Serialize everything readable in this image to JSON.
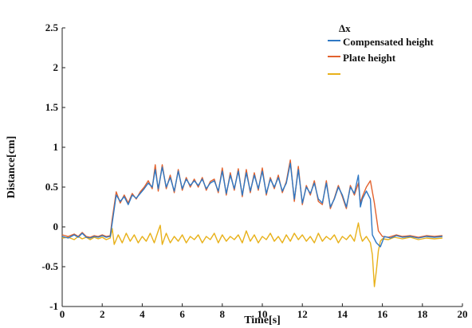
{
  "chart_data": {
    "type": "line",
    "xlabel": "Time[s]",
    "ylabel": "Distance[cm]",
    "xlim": [
      0,
      20
    ],
    "ylim": [
      -1,
      2.5
    ],
    "x_ticks": [
      "0",
      "2",
      "4",
      "6",
      "8",
      "10",
      "12",
      "14",
      "16",
      "18",
      "20"
    ],
    "y_ticks": [
      "2.5",
      "2",
      "1.5",
      "1",
      "0.5",
      "0",
      "-0.5",
      "-1"
    ],
    "x_tick_values": [
      0,
      2,
      4,
      6,
      8,
      10,
      12,
      14,
      16,
      18,
      20
    ],
    "y_tick_values": [
      2.5,
      2,
      1.5,
      1,
      0.5,
      0,
      -0.5,
      -1
    ],
    "grid": false,
    "legend_position": "top-right",
    "legend_title": "Δx",
    "series": [
      {
        "name": "Compensated height",
        "color": "#2f78c4",
        "points": [
          [
            0,
            -0.12
          ],
          [
            0.3,
            -0.14
          ],
          [
            0.6,
            -0.1
          ],
          [
            0.8,
            -0.13
          ],
          [
            1.0,
            -0.08
          ],
          [
            1.2,
            -0.13
          ],
          [
            1.4,
            -0.14
          ],
          [
            1.6,
            -0.12
          ],
          [
            1.8,
            -0.13
          ],
          [
            2.0,
            -0.11
          ],
          [
            2.2,
            -0.13
          ],
          [
            2.4,
            -0.12
          ],
          [
            2.5,
            0.05
          ],
          [
            2.7,
            0.4
          ],
          [
            2.9,
            0.32
          ],
          [
            3.1,
            0.38
          ],
          [
            3.3,
            0.28
          ],
          [
            3.5,
            0.4
          ],
          [
            3.7,
            0.36
          ],
          [
            3.9,
            0.42
          ],
          [
            4.1,
            0.48
          ],
          [
            4.3,
            0.55
          ],
          [
            4.5,
            0.5
          ],
          [
            4.65,
            0.72
          ],
          [
            4.8,
            0.48
          ],
          [
            5.0,
            0.75
          ],
          [
            5.2,
            0.5
          ],
          [
            5.4,
            0.62
          ],
          [
            5.6,
            0.45
          ],
          [
            5.8,
            0.7
          ],
          [
            6.0,
            0.48
          ],
          [
            6.2,
            0.6
          ],
          [
            6.4,
            0.52
          ],
          [
            6.6,
            0.58
          ],
          [
            6.8,
            0.52
          ],
          [
            7.0,
            0.6
          ],
          [
            7.2,
            0.48
          ],
          [
            7.4,
            0.55
          ],
          [
            7.6,
            0.58
          ],
          [
            7.8,
            0.45
          ],
          [
            8.0,
            0.7
          ],
          [
            8.2,
            0.42
          ],
          [
            8.4,
            0.65
          ],
          [
            8.6,
            0.48
          ],
          [
            8.8,
            0.7
          ],
          [
            9.0,
            0.4
          ],
          [
            9.2,
            0.68
          ],
          [
            9.4,
            0.45
          ],
          [
            9.6,
            0.65
          ],
          [
            9.8,
            0.48
          ],
          [
            10.0,
            0.7
          ],
          [
            10.2,
            0.42
          ],
          [
            10.4,
            0.6
          ],
          [
            10.6,
            0.5
          ],
          [
            10.8,
            0.62
          ],
          [
            11.0,
            0.45
          ],
          [
            11.2,
            0.55
          ],
          [
            11.4,
            0.8
          ],
          [
            11.6,
            0.35
          ],
          [
            11.8,
            0.72
          ],
          [
            12.0,
            0.3
          ],
          [
            12.2,
            0.5
          ],
          [
            12.4,
            0.42
          ],
          [
            12.6,
            0.55
          ],
          [
            12.8,
            0.35
          ],
          [
            13.0,
            0.3
          ],
          [
            13.2,
            0.55
          ],
          [
            13.4,
            0.25
          ],
          [
            13.6,
            0.35
          ],
          [
            13.8,
            0.5
          ],
          [
            14.0,
            0.4
          ],
          [
            14.2,
            0.25
          ],
          [
            14.4,
            0.5
          ],
          [
            14.6,
            0.42
          ],
          [
            14.8,
            0.65
          ],
          [
            14.9,
            0.25
          ],
          [
            15.0,
            0.35
          ],
          [
            15.2,
            0.45
          ],
          [
            15.4,
            0.35
          ],
          [
            15.5,
            -0.1
          ],
          [
            15.7,
            -0.2
          ],
          [
            15.9,
            -0.25
          ],
          [
            16.1,
            -0.12
          ],
          [
            16.4,
            -0.14
          ],
          [
            16.7,
            -0.11
          ],
          [
            17.0,
            -0.13
          ],
          [
            17.4,
            -0.12
          ],
          [
            17.8,
            -0.14
          ],
          [
            18.2,
            -0.12
          ],
          [
            18.6,
            -0.13
          ],
          [
            19.0,
            -0.12
          ]
        ]
      },
      {
        "name": "Plate height",
        "color": "#e2622e",
        "points": [
          [
            0,
            -0.1
          ],
          [
            0.3,
            -0.12
          ],
          [
            0.6,
            -0.09
          ],
          [
            0.8,
            -0.12
          ],
          [
            1.0,
            -0.07
          ],
          [
            1.2,
            -0.12
          ],
          [
            1.4,
            -0.13
          ],
          [
            1.6,
            -0.11
          ],
          [
            1.8,
            -0.12
          ],
          [
            2.0,
            -0.1
          ],
          [
            2.2,
            -0.12
          ],
          [
            2.4,
            -0.11
          ],
          [
            2.5,
            0.1
          ],
          [
            2.7,
            0.44
          ],
          [
            2.9,
            0.3
          ],
          [
            3.1,
            0.4
          ],
          [
            3.3,
            0.3
          ],
          [
            3.5,
            0.42
          ],
          [
            3.7,
            0.35
          ],
          [
            3.9,
            0.44
          ],
          [
            4.1,
            0.5
          ],
          [
            4.3,
            0.58
          ],
          [
            4.5,
            0.48
          ],
          [
            4.65,
            0.78
          ],
          [
            4.8,
            0.45
          ],
          [
            5.0,
            0.78
          ],
          [
            5.2,
            0.48
          ],
          [
            5.4,
            0.65
          ],
          [
            5.6,
            0.43
          ],
          [
            5.8,
            0.72
          ],
          [
            6.0,
            0.46
          ],
          [
            6.2,
            0.62
          ],
          [
            6.4,
            0.5
          ],
          [
            6.6,
            0.6
          ],
          [
            6.8,
            0.5
          ],
          [
            7.0,
            0.62
          ],
          [
            7.2,
            0.46
          ],
          [
            7.4,
            0.57
          ],
          [
            7.6,
            0.6
          ],
          [
            7.8,
            0.43
          ],
          [
            8.0,
            0.74
          ],
          [
            8.2,
            0.4
          ],
          [
            8.4,
            0.68
          ],
          [
            8.6,
            0.46
          ],
          [
            8.8,
            0.73
          ],
          [
            9.0,
            0.38
          ],
          [
            9.2,
            0.72
          ],
          [
            9.4,
            0.43
          ],
          [
            9.6,
            0.68
          ],
          [
            9.8,
            0.46
          ],
          [
            10.0,
            0.74
          ],
          [
            10.2,
            0.4
          ],
          [
            10.4,
            0.62
          ],
          [
            10.6,
            0.48
          ],
          [
            10.8,
            0.65
          ],
          [
            11.0,
            0.43
          ],
          [
            11.2,
            0.57
          ],
          [
            11.4,
            0.84
          ],
          [
            11.6,
            0.32
          ],
          [
            11.8,
            0.76
          ],
          [
            12.0,
            0.28
          ],
          [
            12.2,
            0.52
          ],
          [
            12.4,
            0.4
          ],
          [
            12.6,
            0.58
          ],
          [
            12.8,
            0.32
          ],
          [
            13.0,
            0.28
          ],
          [
            13.2,
            0.58
          ],
          [
            13.4,
            0.23
          ],
          [
            13.6,
            0.36
          ],
          [
            13.8,
            0.52
          ],
          [
            14.0,
            0.38
          ],
          [
            14.2,
            0.23
          ],
          [
            14.4,
            0.52
          ],
          [
            14.6,
            0.4
          ],
          [
            14.8,
            0.55
          ],
          [
            14.9,
            0.3
          ],
          [
            15.0,
            0.38
          ],
          [
            15.2,
            0.5
          ],
          [
            15.4,
            0.58
          ],
          [
            15.6,
            0.3
          ],
          [
            15.8,
            -0.05
          ],
          [
            16.0,
            -0.12
          ],
          [
            16.3,
            -0.13
          ],
          [
            16.7,
            -0.1
          ],
          [
            17.0,
            -0.12
          ],
          [
            17.4,
            -0.11
          ],
          [
            17.8,
            -0.13
          ],
          [
            18.2,
            -0.11
          ],
          [
            18.6,
            -0.12
          ],
          [
            19.0,
            -0.11
          ]
        ]
      },
      {
        "name": "",
        "color": "#e8b11a",
        "points": [
          [
            0,
            -0.14
          ],
          [
            0.3,
            -0.13
          ],
          [
            0.6,
            -0.16
          ],
          [
            0.8,
            -0.12
          ],
          [
            1.0,
            -0.15
          ],
          [
            1.2,
            -0.13
          ],
          [
            1.4,
            -0.16
          ],
          [
            1.6,
            -0.13
          ],
          [
            1.8,
            -0.15
          ],
          [
            2.0,
            -0.13
          ],
          [
            2.2,
            -0.16
          ],
          [
            2.4,
            -0.14
          ],
          [
            2.5,
            -0.02
          ],
          [
            2.6,
            -0.22
          ],
          [
            2.8,
            -0.1
          ],
          [
            3.0,
            -0.2
          ],
          [
            3.2,
            -0.08
          ],
          [
            3.4,
            -0.18
          ],
          [
            3.6,
            -0.1
          ],
          [
            3.8,
            -0.2
          ],
          [
            4.0,
            -0.12
          ],
          [
            4.2,
            -0.18
          ],
          [
            4.4,
            -0.08
          ],
          [
            4.6,
            -0.2
          ],
          [
            4.8,
            -0.05
          ],
          [
            4.9,
            0.02
          ],
          [
            5.0,
            -0.22
          ],
          [
            5.2,
            -0.08
          ],
          [
            5.4,
            -0.2
          ],
          [
            5.6,
            -0.12
          ],
          [
            5.8,
            -0.18
          ],
          [
            6.0,
            -0.1
          ],
          [
            6.2,
            -0.2
          ],
          [
            6.4,
            -0.12
          ],
          [
            6.6,
            -0.16
          ],
          [
            6.8,
            -0.1
          ],
          [
            7.0,
            -0.2
          ],
          [
            7.2,
            -0.12
          ],
          [
            7.4,
            -0.16
          ],
          [
            7.6,
            -0.08
          ],
          [
            7.8,
            -0.2
          ],
          [
            8.0,
            -0.1
          ],
          [
            8.2,
            -0.18
          ],
          [
            8.4,
            -0.12
          ],
          [
            8.6,
            -0.16
          ],
          [
            8.8,
            -0.1
          ],
          [
            9.0,
            -0.2
          ],
          [
            9.2,
            -0.05
          ],
          [
            9.4,
            -0.18
          ],
          [
            9.6,
            -0.1
          ],
          [
            9.8,
            -0.2
          ],
          [
            10.0,
            -0.12
          ],
          [
            10.2,
            -0.16
          ],
          [
            10.4,
            -0.08
          ],
          [
            10.6,
            -0.18
          ],
          [
            10.8,
            -0.12
          ],
          [
            11.0,
            -0.2
          ],
          [
            11.2,
            -0.1
          ],
          [
            11.4,
            -0.18
          ],
          [
            11.6,
            -0.08
          ],
          [
            11.8,
            -0.16
          ],
          [
            12.0,
            -0.1
          ],
          [
            12.2,
            -0.18
          ],
          [
            12.4,
            -0.12
          ],
          [
            12.6,
            -0.2
          ],
          [
            12.8,
            -0.08
          ],
          [
            13.0,
            -0.18
          ],
          [
            13.2,
            -0.12
          ],
          [
            13.4,
            -0.16
          ],
          [
            13.6,
            -0.1
          ],
          [
            13.8,
            -0.2
          ],
          [
            14.0,
            -0.12
          ],
          [
            14.2,
            -0.16
          ],
          [
            14.4,
            -0.1
          ],
          [
            14.6,
            -0.18
          ],
          [
            14.8,
            0.05
          ],
          [
            14.9,
            -0.1
          ],
          [
            15.0,
            -0.18
          ],
          [
            15.2,
            -0.12
          ],
          [
            15.4,
            -0.2
          ],
          [
            15.5,
            -0.35
          ],
          [
            15.6,
            -0.75
          ],
          [
            15.7,
            -0.55
          ],
          [
            15.8,
            -0.3
          ],
          [
            15.9,
            -0.18
          ],
          [
            16.0,
            -0.15
          ],
          [
            16.3,
            -0.16
          ],
          [
            16.6,
            -0.13
          ],
          [
            17.0,
            -0.15
          ],
          [
            17.4,
            -0.13
          ],
          [
            17.8,
            -0.16
          ],
          [
            18.2,
            -0.14
          ],
          [
            18.6,
            -0.15
          ],
          [
            19.0,
            -0.14
          ]
        ]
      }
    ]
  }
}
